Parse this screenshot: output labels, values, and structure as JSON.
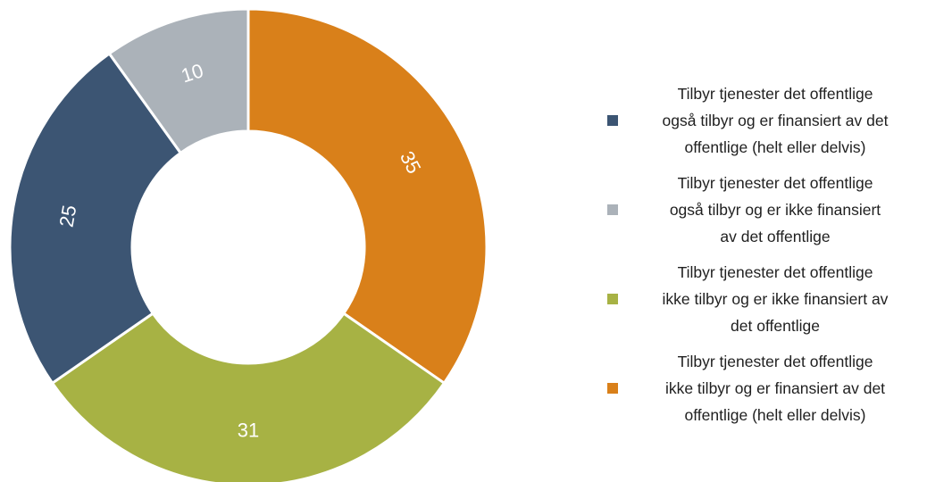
{
  "chart_data": {
    "type": "pie",
    "donut": true,
    "start": "12 o'clock",
    "direction": "clockwise",
    "slices": [
      {
        "label": "Tilbyr tjenester det offentlige\nikke tilbyr og er  finansiert av det\noffentlige (helt eller delvis)",
        "value": 35,
        "color": "#D9801A"
      },
      {
        "label": "Tilbyr tjenester det offentlige\nikke tilbyr og er ikke finansiert av\ndet offentlige",
        "value": 31,
        "color": "#A7B244"
      },
      {
        "label": "Tilbyr tjenester det offentlige\nogså tilbyr og er finansiert av det\noffentlige (helt eller delvis)",
        "value": 25,
        "color": "#3C5573"
      },
      {
        "label": "Tilbyr tjenester det offentlige\nogså tilbyr og er ikke finansiert\nav det offentlige",
        "value": 10,
        "color": "#ABB2B9"
      }
    ],
    "legend": {
      "position": "right",
      "order": [
        2,
        3,
        1,
        0
      ]
    }
  }
}
